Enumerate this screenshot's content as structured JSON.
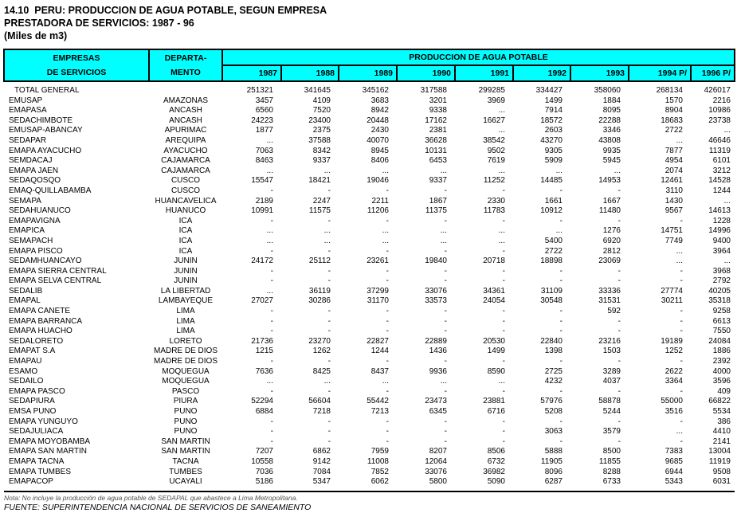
{
  "title": {
    "line1": "14.10  PERU: PRODUCCION DE AGUA POTABLE, SEGUN EMPRESA",
    "line2": "PRESTADORA DE SERVICIOS: 1987 - 96",
    "line3": "(Miles de m3)"
  },
  "colors": {
    "header_bg": "#00FFFF",
    "border": "#000000"
  },
  "table": {
    "col_empresas_line1": "EMPRESAS",
    "col_empresas_line2": "DE SERVICIOS",
    "col_depto_line1": "DEPARTA-",
    "col_depto_line2": "MENTO",
    "group_header": "PRODUCCION DE AGUA POTABLE",
    "years": [
      "1987",
      "1988",
      "1989",
      "1990",
      "1991",
      "1992",
      "1993",
      "1994 P/",
      "1996 P/"
    ],
    "rows": [
      {
        "empresa": "TOTAL GENERAL",
        "departamento": "",
        "values": [
          251321,
          341645,
          345162,
          317588,
          299285,
          334427,
          358060,
          268134,
          426017
        ]
      },
      {
        "empresa": "EMUSAP",
        "departamento": "AMAZONAS",
        "values": [
          3457,
          4109,
          3683,
          3201,
          3969,
          1499,
          1884,
          1570,
          2216
        ]
      },
      {
        "empresa": "EMAPASA",
        "departamento": "ANCASH",
        "values": [
          6560,
          7520,
          8942,
          9338,
          "...",
          7914,
          8095,
          8904,
          10986
        ]
      },
      {
        "empresa": "SEDACHIMBOTE",
        "departamento": "ANCASH",
        "values": [
          24223,
          23400,
          20448,
          17162,
          16627,
          18572,
          22288,
          18683,
          23738
        ]
      },
      {
        "empresa": "EMUSAP-ABANCAY",
        "departamento": "APURIMAC",
        "values": [
          1877,
          2375,
          2430,
          2381,
          "...",
          2603,
          3346,
          2722,
          "..."
        ]
      },
      {
        "empresa": "SEDAPAR",
        "departamento": "AREQUIPA",
        "values": [
          "...",
          37588,
          40070,
          36628,
          38542,
          43270,
          43808,
          "...",
          46646
        ]
      },
      {
        "empresa": "EMAPA AYACUCHO",
        "departamento": "AYACUCHO",
        "values": [
          7063,
          8342,
          8945,
          10131,
          9502,
          9305,
          9935,
          7877,
          11319
        ]
      },
      {
        "empresa": "SEMDACAJ",
        "departamento": "CAJAMARCA",
        "values": [
          8463,
          9337,
          8406,
          6453,
          7619,
          5909,
          5945,
          4954,
          6101
        ]
      },
      {
        "empresa": "EMAPA JAEN",
        "departamento": "CAJAMARCA",
        "values": [
          "...",
          "...",
          "...",
          "...",
          "...",
          "...",
          "...",
          2074,
          3212
        ]
      },
      {
        "empresa": "SEDAQOSQO",
        "departamento": "CUSCO",
        "values": [
          15547,
          18421,
          19046,
          9337,
          11252,
          14485,
          14953,
          12461,
          14528
        ]
      },
      {
        "empresa": "EMAQ-QUILLABAMBA",
        "departamento": "CUSCO",
        "values": [
          "-",
          "-",
          "-",
          "-",
          "-",
          "-",
          "-",
          3110,
          1244
        ]
      },
      {
        "empresa": "SEMAPA",
        "departamento": "HUANCAVELICA",
        "values": [
          2189,
          2247,
          2211,
          1867,
          2330,
          1661,
          1667,
          1430,
          "..."
        ]
      },
      {
        "empresa": "SEDAHUANUCO",
        "departamento": "HUANUCO",
        "values": [
          10991,
          11575,
          11206,
          11375,
          11783,
          10912,
          11480,
          9567,
          14613
        ]
      },
      {
        "empresa": "EMAPAVIGNA",
        "departamento": "ICA",
        "values": [
          "-",
          "-",
          "-",
          "-",
          "-",
          "-",
          "-",
          "-",
          1228
        ]
      },
      {
        "empresa": "EMAPICA",
        "departamento": "ICA",
        "values": [
          "...",
          "...",
          "...",
          "...",
          "...",
          "...",
          1276,
          14751,
          14996
        ]
      },
      {
        "empresa": "SEMAPACH",
        "departamento": "ICA",
        "values": [
          "...",
          "...",
          "...",
          "...",
          "...",
          5400,
          6920,
          7749,
          9400
        ]
      },
      {
        "empresa": "EMAPA PISCO",
        "departamento": "ICA",
        "values": [
          "-",
          "-",
          "-",
          "-",
          "-",
          2722,
          2812,
          "...",
          3964
        ]
      },
      {
        "empresa": "SEDAMHUANCAYO",
        "departamento": "JUNIN",
        "values": [
          24172,
          25112,
          23261,
          19840,
          20718,
          18898,
          23069,
          "...",
          "..."
        ]
      },
      {
        "empresa": "EMAPA SIERRA CENTRAL",
        "departamento": "JUNIN",
        "values": [
          "-",
          "-",
          "-",
          "-",
          "-",
          "-",
          "-",
          "-",
          3968
        ]
      },
      {
        "empresa": "EMAPA SELVA CENTRAL",
        "departamento": "JUNIN",
        "values": [
          "-",
          "-",
          "-",
          "-",
          "-",
          "-",
          "-",
          "-",
          2792
        ]
      },
      {
        "empresa": "SEDALIB",
        "departamento": "LA LIBERTAD",
        "values": [
          "...",
          36119,
          37299,
          33076,
          34361,
          31109,
          33336,
          27774,
          40205
        ]
      },
      {
        "empresa": "EMAPAL",
        "departamento": "LAMBAYEQUE",
        "values": [
          27027,
          30286,
          31170,
          33573,
          24054,
          30548,
          31531,
          30211,
          35318
        ]
      },
      {
        "empresa": "EMAPA CAÑETE",
        "departamento": "LIMA",
        "values": [
          "-",
          "-",
          "-",
          "-",
          "-",
          "-",
          592,
          "-",
          9258
        ]
      },
      {
        "empresa": "EMAPA BARRANCA",
        "departamento": "LIMA",
        "values": [
          "-",
          "-",
          "-",
          "-",
          "-",
          "-",
          "-",
          "-",
          6613
        ]
      },
      {
        "empresa": "EMAPA HUACHO",
        "departamento": "LIMA",
        "values": [
          "-",
          "-",
          "-",
          "-",
          "-",
          "-",
          "-",
          "-",
          7550
        ]
      },
      {
        "empresa": "SEDALORETO",
        "departamento": "LORETO",
        "values": [
          21736,
          23270,
          22827,
          22889,
          20530,
          22840,
          23216,
          19189,
          24084
        ]
      },
      {
        "empresa": "EMAPAT S.A",
        "departamento": "MADRE DE DIOS",
        "values": [
          1215,
          1262,
          1244,
          1436,
          1499,
          1398,
          1503,
          1252,
          1886
        ]
      },
      {
        "empresa": "EMAPAU",
        "departamento": "MADRE DE DIOS",
        "values": [
          "-",
          "-",
          "-",
          "-",
          "-",
          "-",
          "-",
          "-",
          2392
        ]
      },
      {
        "empresa": "ESAMO",
        "departamento": "MOQUEGUA",
        "values": [
          7636,
          8425,
          8437,
          9936,
          8590,
          2725,
          3289,
          2622,
          4000
        ]
      },
      {
        "empresa": "SEDAILO",
        "departamento": "MOQUEGUA",
        "values": [
          "...",
          "...",
          "...",
          "...",
          "...",
          4232,
          4037,
          3364,
          3596
        ]
      },
      {
        "empresa": "EMAPA PASCO",
        "departamento": "PASCO",
        "values": [
          "-",
          "-",
          "-",
          "-",
          "-",
          "-",
          "-",
          "-",
          409
        ]
      },
      {
        "empresa": "SEDAPIURA",
        "departamento": "PIURA",
        "values": [
          52294,
          56604,
          55442,
          23473,
          23881,
          57976,
          58878,
          55000,
          66822
        ]
      },
      {
        "empresa": "EMSA PUNO",
        "departamento": "PUNO",
        "values": [
          6884,
          7218,
          7213,
          6345,
          6716,
          5208,
          5244,
          3516,
          5534
        ]
      },
      {
        "empresa": "EMAPA YUNGUYO",
        "departamento": "PUNO",
        "values": [
          "-",
          "-",
          "-",
          "-",
          "-",
          "-",
          "-",
          "-",
          386
        ]
      },
      {
        "empresa": "SEDAJULIACA",
        "departamento": "PUNO",
        "values": [
          "-",
          "-",
          "-",
          "-",
          "-",
          3063,
          3579,
          "...",
          4410
        ]
      },
      {
        "empresa": "EMAPA MOYOBAMBA",
        "departamento": "SAN MARTIN",
        "values": [
          "-",
          "-",
          "-",
          "-",
          "-",
          "-",
          "-",
          "-",
          2141
        ]
      },
      {
        "empresa": "EMAPA SAN MARTIN",
        "departamento": "SAN MARTIN",
        "values": [
          7207,
          6862,
          7959,
          8207,
          8506,
          5888,
          8500,
          7383,
          13004
        ]
      },
      {
        "empresa": "EMAPA TACNA",
        "departamento": "TACNA",
        "values": [
          10558,
          9142,
          11008,
          12064,
          6732,
          11905,
          11855,
          9685,
          11919
        ]
      },
      {
        "empresa": "EMAPA TUMBES",
        "departamento": "TUMBES",
        "values": [
          7036,
          7084,
          7852,
          33076,
          36982,
          8096,
          8288,
          6944,
          9508
        ]
      },
      {
        "empresa": "EMAPACOP",
        "departamento": "UCAYALI",
        "values": [
          5186,
          5347,
          6062,
          5800,
          5090,
          6287,
          6733,
          5343,
          6031
        ]
      }
    ]
  },
  "footer": {
    "nota": "Nota: No incluye la producción de agua potable de SEDAPAL que abastece a Lima Metropolitana.",
    "fuente": "FUENTE: SUPERINTENDENCIA NACIONAL DE SERVICIOS DE SANEAMIENTO"
  }
}
